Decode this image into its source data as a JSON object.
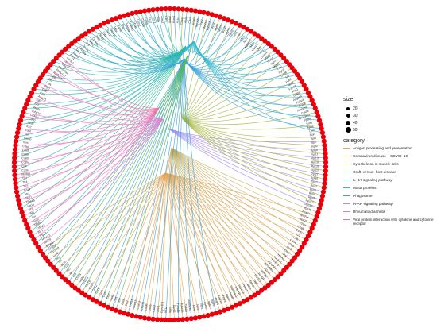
{
  "legend": {
    "size_title": "size",
    "size_values": [
      "20",
      "30",
      "40",
      "50"
    ],
    "category_title": "category",
    "categories": [
      {
        "name": "Antigen processing and presentation",
        "color": "#e8a65a"
      },
      {
        "name": "Coronavirus disease – COVID–19",
        "color": "#c8aa56"
      },
      {
        "name": "Cytoskeleton in muscle cells",
        "color": "#a7b43c"
      },
      {
        "name": "Graft–versus–host disease",
        "color": "#55b74c"
      },
      {
        "name": "IL−17 signaling pathway",
        "color": "#2cb99a"
      },
      {
        "name": "Motor proteins",
        "color": "#33b8cf"
      },
      {
        "name": "Phagosome",
        "color": "#3aa3dd"
      },
      {
        "name": "PPAR signaling pathway",
        "color": "#a98ef0"
      },
      {
        "name": "Rheumatoid arthritis",
        "color": "#e17bd6"
      },
      {
        "name": "Viral protein interaction with cytokine and cytokine receptor",
        "color": "#f271a5"
      }
    ]
  },
  "nodes": {
    "color": "#e8000b",
    "labels": [
      "Acta2",
      "Actn3",
      "Actc1",
      "Casq1",
      "Myl9",
      "Clic2",
      "Enah",
      "Myo5b",
      "Ryr2",
      "Myom2",
      "Myom3",
      "Myh2",
      "Myh4",
      "Myh1",
      "Myh8",
      "Myh7",
      "Tpm2",
      "Tnnt3",
      "Ttn",
      "Myl2",
      "Myl1",
      "Mybpc2",
      "Myot",
      "Myoz1",
      "Des",
      "Flnc",
      "Lmod2",
      "Xirp2",
      "Smpx",
      "Itgb1",
      "Mypn",
      "Tcap",
      "Sgca",
      "Cd36",
      "Lpl",
      "Pdk4",
      "Acsl1",
      "Fabp4",
      "Plin1",
      "Cidec",
      "Angptl4",
      "Fabp3",
      "Acadl",
      "Hmgcs2",
      "Cpt1a",
      "Ppargc1a",
      "Pparg",
      "Scd1",
      "Apoe",
      "Lpl2",
      "Rpl4",
      "Rpl6",
      "Rpl7",
      "Rpl9",
      "Rpl10",
      "Rpl11",
      "Rpl13",
      "Rpl18",
      "Rpl19",
      "Rpl23",
      "Rpl27",
      "Rpl30",
      "Rps2",
      "Rps3",
      "Rps5",
      "Rps6",
      "Rps8",
      "Rps12",
      "Rps15",
      "Rps19",
      "Rps24",
      "Rps27a",
      "Rps29",
      "C1qa",
      "C1qb",
      "C1qc",
      "C3",
      "C4b",
      "Cd74",
      "Ctss",
      "Ctsb",
      "Ctsd",
      "Ctsl",
      "H2-Aa",
      "H2-Ab1",
      "H2-Eb1",
      "H2-DMa",
      "H2-DMb1",
      "H2-K1",
      "H2-D1",
      "H2-Q4",
      "H2-T23",
      "Tap1",
      "Tapbp",
      "B2m",
      "Psme1",
      "Hspa1a",
      "Hspa1b",
      "Hsp90aa1",
      "Hspa8",
      "Lgmn",
      "Fcgr1",
      "Fcgr2b",
      "Fcgr3",
      "Itgam",
      "Itgb2",
      "Cybb",
      "Ncf1",
      "Ncf2",
      "Ncf4",
      "Atp6v0d2",
      "Tubb5",
      "Tuba1a",
      "Tuba1b",
      "Dynll1",
      "Kif5b",
      "Kif1a",
      "Dync1h1",
      "Cxcl1",
      "Cxcl2",
      "Cxcl5",
      "Cxcl9",
      "Cxcl10",
      "Cxcl12",
      "Cxcl13",
      "Cxcl14",
      "Ccl2",
      "Ccl3",
      "Ccl4",
      "Ccl5",
      "Ccl6",
      "Ccl7",
      "Ccl8",
      "Ccl9",
      "Ccl11",
      "Ccl12",
      "Ccl17",
      "Ccl19",
      "Ccl21a",
      "Ccl22",
      "Ccl24",
      "Il1b",
      "Il6",
      "Il10",
      "Il17a",
      "Il17f",
      "Tnf",
      "Ifng",
      "Lcn2",
      "S100a8",
      "S100a9",
      "Mmp3",
      "Mmp9",
      "Mmp13",
      "Ptgs2",
      "Il1r1",
      "Tnfaip3",
      "Nfkbia",
      "Fosb",
      "Jun",
      "Ifit1",
      "Irf7",
      "Isg15",
      "Oas1a",
      "Stat1",
      "Mx1",
      "Cd14",
      "Tlr2",
      "Tlr4",
      "Tlr7",
      "Myd88",
      "Cd3e",
      "Cd4",
      "Cd8a",
      "Cd80",
      "Cd86",
      "Cd28",
      "Ctla4",
      "Icos",
      "Gzmb",
      "Prf1",
      "Fasl",
      "Kir2",
      "Klrd1",
      "Cd40",
      "Cd40lg",
      "Tnfsf11",
      "Vegfa",
      "Flt1",
      "Kdr",
      "Angpt1",
      "Csf1",
      "Csf2",
      "Acp5",
      "Ctsk",
      "Ltb",
      "Tgfb1",
      "Atp6v1a",
      "Atp6v1b2",
      "Atp6v0a1",
      "Tcirg1",
      "Lamp1",
      "Lamp2",
      "Mrc1",
      "Marco",
      "Msr1",
      "Cd209a",
      "Clec7a",
      "Tlr9",
      "Thbs1",
      "Coro1a",
      "Actb",
      "Actg1",
      "Cyba",
      "Rac2",
      "Sec61b",
      "Mpo",
      "Elane",
      "Ctsg",
      "Tubb2a",
      "Tubb4b",
      "Tubb6",
      "Dctn1",
      "Cd206",
      "Cd68",
      "Lyz2",
      "Emr1",
      "Itgax",
      "Actn2",
      "Ckm"
    ]
  }
}
